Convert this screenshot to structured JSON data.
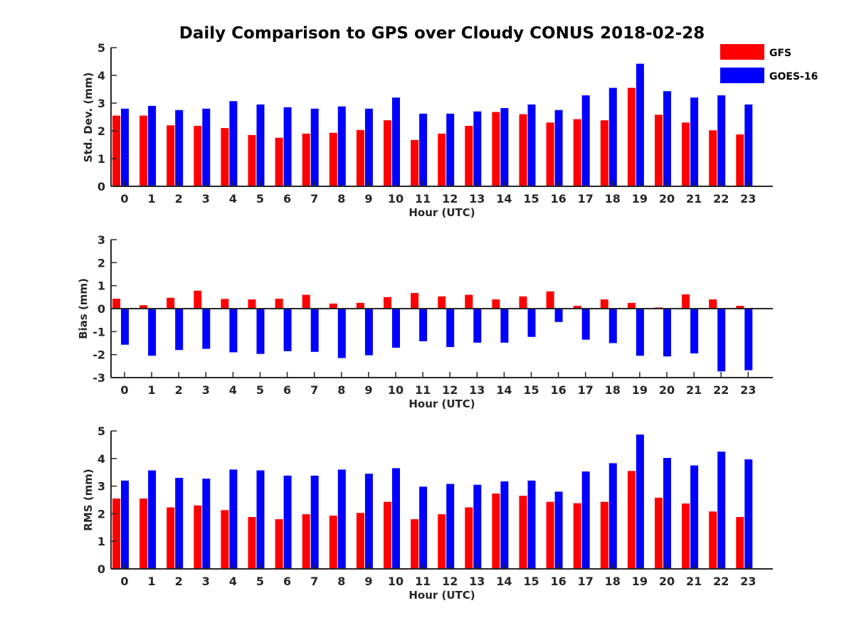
{
  "chart_data": {
    "type": "bar",
    "title": "Daily Comparison to GPS over Cloudy CONUS 2018-02-28",
    "legend": {
      "placement": "top-right",
      "entries": [
        {
          "name": "GFS",
          "color": "#ff0000"
        },
        {
          "name": "GOES-16",
          "color": "#0000ff"
        }
      ]
    },
    "categories": [
      "0",
      "1",
      "2",
      "3",
      "4",
      "5",
      "6",
      "7",
      "8",
      "9",
      "10",
      "11",
      "12",
      "13",
      "14",
      "15",
      "16",
      "17",
      "18",
      "19",
      "20",
      "21",
      "22",
      "23"
    ],
    "panels": [
      {
        "xlabel": "Hour (UTC)",
        "ylabel": "Std. Dev. (mm)",
        "ylim": [
          0,
          5
        ],
        "yticks": [
          0,
          1,
          2,
          3,
          4,
          5
        ],
        "series": [
          {
            "name": "GFS",
            "color": "#ff0000",
            "values": [
              2.55,
              2.55,
              2.2,
              2.18,
              2.1,
              1.85,
              1.75,
              1.9,
              1.93,
              2.03,
              2.38,
              1.67,
              1.9,
              2.18,
              2.68,
              2.6,
              2.3,
              2.42,
              2.38,
              3.55,
              2.58,
              2.3,
              2.02,
              1.87
            ]
          },
          {
            "name": "GOES-16",
            "color": "#0000ff",
            "values": [
              2.8,
              2.9,
              2.75,
              2.8,
              3.07,
              2.95,
              2.85,
              2.8,
              2.88,
              2.8,
              3.2,
              2.62,
              2.62,
              2.7,
              2.82,
              2.95,
              2.75,
              3.28,
              3.55,
              4.42,
              3.43,
              3.2,
              3.28,
              2.95
            ]
          }
        ]
      },
      {
        "xlabel": "Hour (UTC)",
        "ylabel": "Bias (mm)",
        "ylim": [
          -3,
          3
        ],
        "yticks": [
          -3,
          -2,
          -1,
          0,
          1,
          2,
          3
        ],
        "series": [
          {
            "name": "GFS",
            "color": "#ff0000",
            "values": [
              0.43,
              0.15,
              0.47,
              0.78,
              0.42,
              0.4,
              0.43,
              0.6,
              0.22,
              0.25,
              0.5,
              0.68,
              0.53,
              0.6,
              0.4,
              0.53,
              0.75,
              0.12,
              0.4,
              0.25,
              0.05,
              0.62,
              0.4,
              0.12
            ]
          },
          {
            "name": "GOES-16",
            "color": "#0000ff",
            "values": [
              -1.57,
              -2.05,
              -1.8,
              -1.75,
              -1.9,
              -1.97,
              -1.85,
              -1.88,
              -2.15,
              -2.03,
              -1.7,
              -1.42,
              -1.67,
              -1.48,
              -1.48,
              -1.23,
              -0.58,
              -1.35,
              -1.5,
              -2.05,
              -2.08,
              -1.95,
              -2.73,
              -2.68
            ]
          }
        ]
      },
      {
        "xlabel": "Hour (UTC)",
        "ylabel": "RMS (mm)",
        "ylim": [
          0,
          5
        ],
        "yticks": [
          0,
          1,
          2,
          3,
          4,
          5
        ],
        "series": [
          {
            "name": "GFS",
            "color": "#ff0000",
            "values": [
              2.55,
              2.55,
              2.23,
              2.3,
              2.13,
              1.88,
              1.8,
              1.98,
              1.93,
              2.03,
              2.43,
              1.8,
              1.98,
              2.23,
              2.73,
              2.65,
              2.43,
              2.38,
              2.43,
              3.55,
              2.58,
              2.37,
              2.08,
              1.88
            ]
          },
          {
            "name": "GOES-16",
            "color": "#0000ff",
            "values": [
              3.2,
              3.57,
              3.3,
              3.27,
              3.6,
              3.57,
              3.38,
              3.38,
              3.6,
              3.45,
              3.65,
              2.98,
              3.08,
              3.05,
              3.17,
              3.2,
              2.8,
              3.53,
              3.83,
              4.87,
              4.02,
              3.75,
              4.25,
              3.97
            ]
          }
        ]
      }
    ]
  }
}
